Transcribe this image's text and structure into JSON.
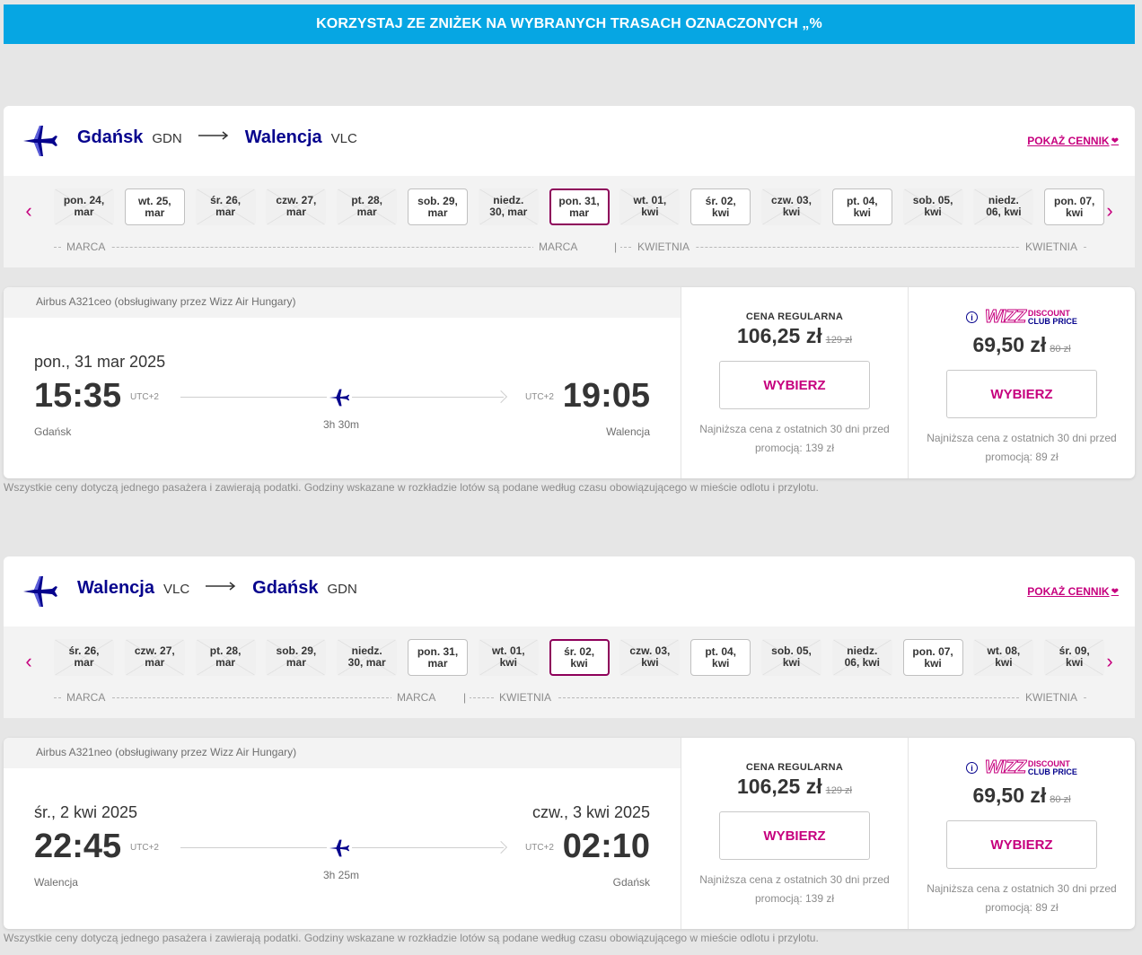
{
  "banner": {
    "text": "KORZYSTAJ ZE ZNIŻEK NA WYBRANYCH TRASACH OZNACZONYCH „%"
  },
  "colors": {
    "accent": "#c6007e",
    "brand": "#06038d",
    "banner": "#06a6e3"
  },
  "outbound": {
    "origin_city": "Gdańsk",
    "origin_code": "GDN",
    "dest_city": "Walencja",
    "dest_code": "VLC",
    "show_prices": "POKAŻ CENNIK",
    "dates": [
      {
        "l1": "pon. 24,",
        "l2": "mar",
        "state": "na"
      },
      {
        "l1": "wt. 25,",
        "l2": "mar",
        "state": "ok"
      },
      {
        "l1": "śr. 26,",
        "l2": "mar",
        "state": "na"
      },
      {
        "l1": "czw. 27,",
        "l2": "mar",
        "state": "na"
      },
      {
        "l1": "pt. 28,",
        "l2": "mar",
        "state": "na"
      },
      {
        "l1": "sob. 29,",
        "l2": "mar",
        "state": "ok"
      },
      {
        "l1": "niedz.",
        "l2": "30, mar",
        "state": "na"
      },
      {
        "l1": "pon. 31,",
        "l2": "mar",
        "state": "sel"
      },
      {
        "l1": "wt. 01,",
        "l2": "kwi",
        "state": "na"
      },
      {
        "l1": "śr. 02,",
        "l2": "kwi",
        "state": "ok"
      },
      {
        "l1": "czw. 03,",
        "l2": "kwi",
        "state": "na"
      },
      {
        "l1": "pt. 04,",
        "l2": "kwi",
        "state": "ok"
      },
      {
        "l1": "sob. 05,",
        "l2": "kwi",
        "state": "na"
      },
      {
        "l1": "niedz.",
        "l2": "06, kwi",
        "state": "na"
      },
      {
        "l1": "pon. 07,",
        "l2": "kwi",
        "state": "ok"
      }
    ],
    "month_left": "MARCA",
    "month_mid": "MARCA",
    "month_next": "KWIETNIA",
    "month_right": "KWIETNIA",
    "aircraft": "Airbus A321ceo (obsługiwany przez Wizz Air Hungary)",
    "dep_date": "pon., 31 mar 2025",
    "arr_date": "",
    "dep_time": "15:35",
    "arr_time": "19:05",
    "dep_utc": "UTC+2",
    "arr_utc": "UTC+2",
    "duration": "3h 30m",
    "dep_city": "Gdańsk",
    "arr_city": "Walencja",
    "regular_label": "CENA REGULARNA",
    "regular_price": "106,25 zł",
    "regular_old": "129 zł",
    "regular_btn": "WYBIERZ",
    "regular_lowest": "Najniższa cena z ostatnich 30 dni przed promocją: 139 zł",
    "club_discount": "DISCOUNT",
    "club_price_label": "CLUB PRICE",
    "wizz_logo": "WIZZ",
    "club_price": "69,50 zł",
    "club_old": "80 zł",
    "club_btn": "WYBIERZ",
    "club_lowest": "Najniższa cena z ostatnich 30 dni przed promocją: 89 zł"
  },
  "inbound": {
    "origin_city": "Walencja",
    "origin_code": "VLC",
    "dest_city": "Gdańsk",
    "dest_code": "GDN",
    "show_prices": "POKAŻ CENNIK",
    "dates": [
      {
        "l1": "śr. 26,",
        "l2": "mar",
        "state": "na"
      },
      {
        "l1": "czw. 27,",
        "l2": "mar",
        "state": "na"
      },
      {
        "l1": "pt. 28,",
        "l2": "mar",
        "state": "na"
      },
      {
        "l1": "sob. 29,",
        "l2": "mar",
        "state": "na"
      },
      {
        "l1": "niedz.",
        "l2": "30, mar",
        "state": "na"
      },
      {
        "l1": "pon. 31,",
        "l2": "mar",
        "state": "ok"
      },
      {
        "l1": "wt. 01,",
        "l2": "kwi",
        "state": "na"
      },
      {
        "l1": "śr. 02,",
        "l2": "kwi",
        "state": "sel"
      },
      {
        "l1": "czw. 03,",
        "l2": "kwi",
        "state": "na"
      },
      {
        "l1": "pt. 04,",
        "l2": "kwi",
        "state": "ok"
      },
      {
        "l1": "sob. 05,",
        "l2": "kwi",
        "state": "na"
      },
      {
        "l1": "niedz.",
        "l2": "06, kwi",
        "state": "na"
      },
      {
        "l1": "pon. 07,",
        "l2": "kwi",
        "state": "ok"
      },
      {
        "l1": "wt. 08,",
        "l2": "kwi",
        "state": "na"
      },
      {
        "l1": "śr. 09,",
        "l2": "kwi",
        "state": "na"
      }
    ],
    "month_left": "MARCA",
    "month_mid": "MARCA",
    "month_next": "KWIETNIA",
    "month_right": "KWIETNIA",
    "aircraft": "Airbus A321neo (obsługiwany przez Wizz Air Hungary)",
    "dep_date": "śr., 2 kwi 2025",
    "arr_date": "czw., 3 kwi 2025",
    "dep_time": "22:45",
    "arr_time": "02:10",
    "dep_utc": "UTC+2",
    "arr_utc": "UTC+2",
    "duration": "3h 25m",
    "dep_city": "Walencja",
    "arr_city": "Gdańsk",
    "regular_label": "CENA REGULARNA",
    "regular_price": "106,25 zł",
    "regular_old": "129 zł",
    "regular_btn": "WYBIERZ",
    "regular_lowest": "Najniższa cena z ostatnich 30 dni przed promocją: 139 zł",
    "club_discount": "DISCOUNT",
    "club_price_label": "CLUB PRICE",
    "wizz_logo": "WIZZ",
    "club_price": "69,50 zł",
    "club_old": "80 zł",
    "club_btn": "WYBIERZ",
    "club_lowest": "Najniższa cena z ostatnich 30 dni przed promocją: 89 zł"
  },
  "disclaimer": "Wszystkie ceny dotyczą jednego pasażera i zawierają podatki. Godziny wskazane w rozkładzie lotów są podane według czasu obowiązującego w mieście odlotu i przylotu."
}
